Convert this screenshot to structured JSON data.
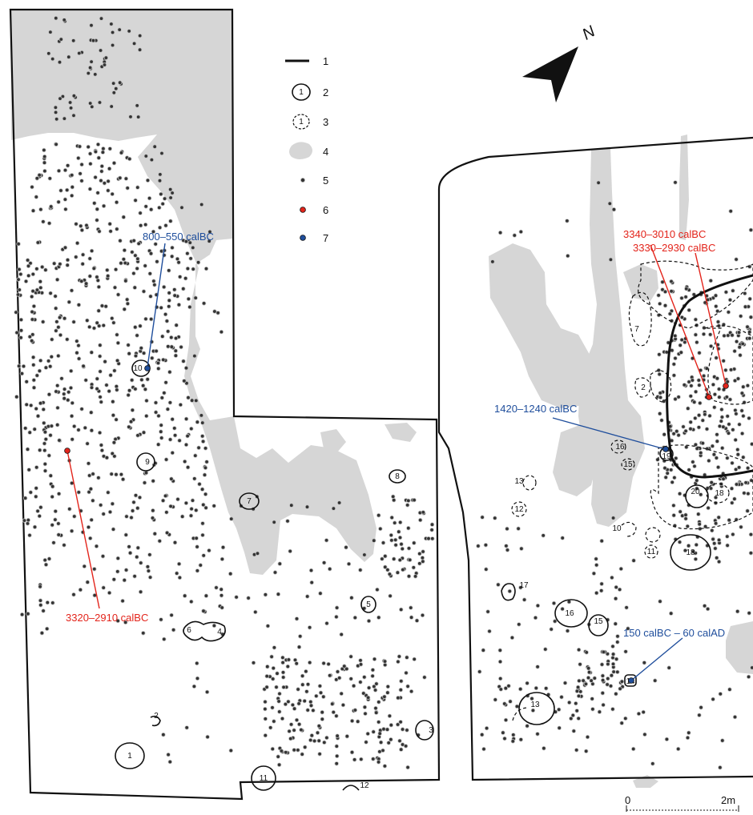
{
  "colors": {
    "outline": "#111111",
    "disturbance": "#d6d6d6",
    "point": "#333333",
    "red": "#e3241b",
    "blue": "#1f4e9c"
  },
  "north": {
    "label": "N"
  },
  "legend": [
    {
      "key": "1",
      "symbol": "thick-line"
    },
    {
      "key": "2",
      "symbol": "solid-feature",
      "sample": "1"
    },
    {
      "key": "3",
      "symbol": "dashed-feature",
      "sample": "1"
    },
    {
      "key": "4",
      "symbol": "grey-area"
    },
    {
      "key": "5",
      "symbol": "find-point"
    },
    {
      "key": "6",
      "symbol": "red-point"
    },
    {
      "key": "7",
      "symbol": "blue-point"
    }
  ],
  "dates": {
    "left_blue": "800–550 calBC",
    "left_red": "3320–2910 calBC",
    "right_red_1": "3340–3010 calBC",
    "right_red_2": "3330–2930 calBC",
    "right_blue_1": "1420–1240 calBC",
    "right_blue_2": "150 calBC – 60 calAD"
  },
  "scale": {
    "start": "0",
    "end": "2m"
  },
  "features_left": [
    "1",
    "2",
    "3",
    "4",
    "5",
    "6",
    "7",
    "8",
    "9",
    "10",
    "11",
    "12"
  ],
  "features_right": [
    "2",
    "7",
    "10",
    "11",
    "12",
    "13",
    "14",
    "15",
    "16",
    "17",
    "18",
    "18",
    "19",
    "20"
  ]
}
